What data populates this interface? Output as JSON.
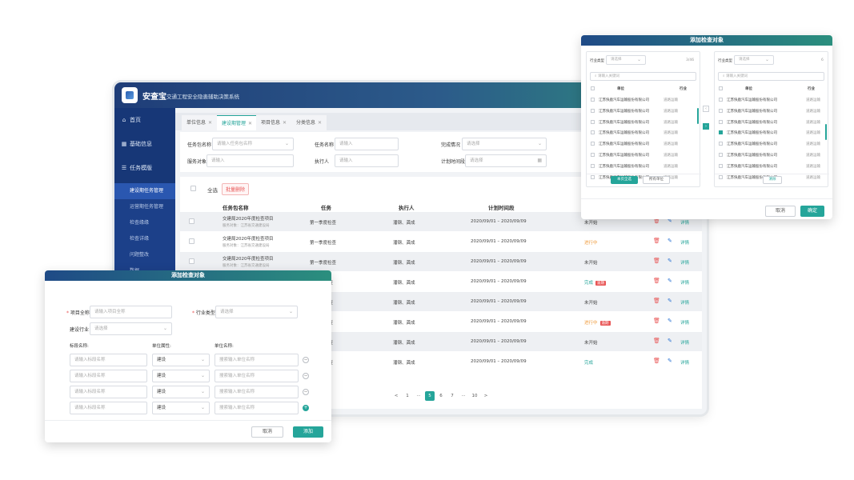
{
  "app": {
    "name": "安查宝",
    "subtitle": "交通工程安全隐患辅助决策系统"
  },
  "sidebar": {
    "home": "首页",
    "basic": "基础信息",
    "task": "任务模版",
    "subs": [
      "建设期任务管理",
      "运营期任务管理",
      "检查缘缘",
      "检查详缘",
      "问题整改",
      "数据..."
    ]
  },
  "tabs": [
    "单位信息",
    "建设期管理",
    "项目信息",
    "分类信息"
  ],
  "filter": {
    "task_pkg_label": "任务包名称",
    "task_pkg_ph": "请输入任务包名称",
    "task_name_label": "任务名称",
    "task_name_ph": "请输入",
    "status_label": "完成情况",
    "status_ph": "请选择",
    "service_label": "服务对象",
    "service_ph": "请输入",
    "executor_label": "执行人",
    "executor_ph": "请输入",
    "time_label": "计划时间段",
    "time_ph": "请选择"
  },
  "list": {
    "select_all": "全选",
    "batch_delete": "批量删除",
    "headers": [
      "任务包名称",
      "任务",
      "执行人",
      "计划时间段"
    ],
    "rows": [
      {
        "pkg": "交建局2020年度检查项目",
        "svc": "服务对象：江苏省交通建设局",
        "task": "第一季度检查",
        "exec": "潘钢、龚成",
        "time": "2020/09/01 – 2020/09/09",
        "status": "未开始",
        "st": "",
        "tag": "",
        "detail": "详情"
      },
      {
        "pkg": "交建局2020年度检查项目",
        "svc": "服务对象：江苏省交通建设局",
        "task": "第一季度检查",
        "exec": "潘钢、龚成",
        "time": "2020/09/01 – 2020/09/09",
        "status": "进行中",
        "st": "doing",
        "tag": "",
        "detail": "详情"
      },
      {
        "pkg": "交建局2020年度检查项目",
        "svc": "服务对象：江苏省交通建设局",
        "task": "第一季度检查",
        "exec": "潘钢、龚成",
        "time": "2020/09/01 – 2020/09/09",
        "status": "未开始",
        "st": "",
        "tag": "",
        "detail": "详情"
      },
      {
        "pkg": "",
        "svc": "",
        "task": "检查",
        "exec": "潘钢、龚成",
        "time": "2020/09/01 – 2020/09/09",
        "status": "完成",
        "st": "done",
        "tag": "逾期",
        "detail": "详情"
      },
      {
        "pkg": "",
        "svc": "",
        "task": "检查",
        "exec": "潘钢、龚成",
        "time": "2020/09/01 – 2020/09/09",
        "status": "未开始",
        "st": "",
        "tag": "",
        "detail": "详情"
      },
      {
        "pkg": "",
        "svc": "",
        "task": "检查",
        "exec": "潘钢、龚成",
        "time": "2020/09/01 – 2020/09/09",
        "status": "进行中",
        "st": "doing",
        "tag": "逾期",
        "detail": "详情"
      },
      {
        "pkg": "",
        "svc": "",
        "task": "检查",
        "exec": "潘钢、龚成",
        "time": "2020/09/01 – 2020/09/09",
        "status": "未开始",
        "st": "",
        "tag": "",
        "detail": "详情"
      },
      {
        "pkg": "",
        "svc": "",
        "task": "检查",
        "exec": "潘钢、龚成",
        "time": "2020/09/01 – 2020/09/09",
        "status": "完成",
        "st": "done",
        "tag": "",
        "detail": "详情"
      }
    ],
    "pagination": [
      "<",
      "1",
      "···",
      "5",
      "6",
      "7",
      "···",
      "10",
      ">"
    ],
    "current_page": "5"
  },
  "modal_left": {
    "title": "添加检查对象",
    "project_label": "项目全称",
    "project_ph": "请输入项目全称",
    "industry_label": "行业类型",
    "industry_ph": "请选择",
    "build_label": "建设行业",
    "build_ph": "请选择",
    "col_section": "标段名称:",
    "col_attr": "单位属性:",
    "col_unit": "单位名称:",
    "section_ph": "请输入标段名称",
    "attr_val": "建设",
    "unit_ph": "搜索输入单位名称",
    "rows": 4,
    "cancel": "取消",
    "add": "添加"
  },
  "modal_right": {
    "title": "添加检查对象",
    "left_panel": {
      "type_label": "行业类型",
      "type_ph": "请选择",
      "count": "3/46",
      "search_ph": "请输入关键词",
      "col_unit": "单位",
      "col_industry": "行业",
      "btn_current": "本页全选",
      "btn_all": "所有单位"
    },
    "right_panel": {
      "type_label": "行业类型",
      "type_ph": "请选择",
      "count": "6",
      "search_ph": "请输入关键词",
      "col_unit": "单位",
      "col_industry": "行业",
      "btn_clear": "清除"
    },
    "company": "江苏快鹿汽车运输股份有限公司",
    "industry": "道路运输",
    "left_checked": [],
    "right_checked": [
      3
    ],
    "cancel": "取消",
    "confirm": "确定"
  }
}
